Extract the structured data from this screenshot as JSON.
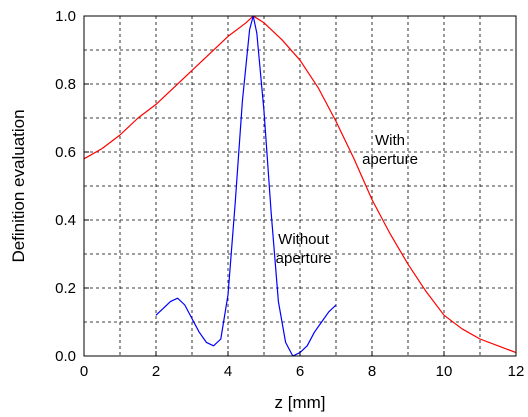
{
  "chart_data": {
    "type": "line",
    "title": "",
    "xlabel": "z [mm]",
    "ylabel": "Definition evaluation",
    "xlim": [
      0,
      12
    ],
    "ylim": [
      0,
      1.0
    ],
    "x_ticks": [
      0,
      2,
      4,
      6,
      8,
      10,
      12
    ],
    "x_tick_labels": [
      "0",
      "2",
      "4",
      "6",
      "8",
      "10",
      "12"
    ],
    "y_ticks": [
      0,
      0.2,
      0.4,
      0.6,
      0.8,
      1.0
    ],
    "y_tick_labels": [
      "0.0",
      "0.2",
      "0.4",
      "0.6",
      "0.8",
      "1.0"
    ],
    "grid": true,
    "grid_style": "dashed",
    "series": [
      {
        "color": "#ff0000",
        "x": [
          0.0,
          0.5,
          1.0,
          1.5,
          2.0,
          2.5,
          3.0,
          3.5,
          4.0,
          4.5,
          4.7,
          5.0,
          5.5,
          6.0,
          6.5,
          7.0,
          7.5,
          8.0,
          8.5,
          9.0,
          9.5,
          10.0,
          10.5,
          11.0,
          11.5,
          12.0
        ],
        "y": [
          0.58,
          0.61,
          0.65,
          0.7,
          0.74,
          0.79,
          0.84,
          0.89,
          0.94,
          0.98,
          1.0,
          0.98,
          0.93,
          0.87,
          0.79,
          0.69,
          0.58,
          0.46,
          0.36,
          0.27,
          0.19,
          0.12,
          0.08,
          0.05,
          0.03,
          0.01
        ]
      },
      {
        "color": "#0000ff",
        "x": [
          2.0,
          2.2,
          2.4,
          2.6,
          2.8,
          3.0,
          3.2,
          3.4,
          3.6,
          3.8,
          4.0,
          4.2,
          4.4,
          4.6,
          4.7,
          4.8,
          5.0,
          5.2,
          5.4,
          5.6,
          5.8,
          6.0,
          6.2,
          6.4,
          6.6,
          6.8,
          7.0
        ],
        "y": [
          0.12,
          0.14,
          0.16,
          0.17,
          0.15,
          0.11,
          0.07,
          0.04,
          0.03,
          0.05,
          0.18,
          0.45,
          0.75,
          0.96,
          1.0,
          0.95,
          0.72,
          0.42,
          0.16,
          0.04,
          0.0,
          0.01,
          0.03,
          0.07,
          0.1,
          0.13,
          0.15
        ]
      }
    ],
    "annotations": [
      {
        "lines": [
          "With",
          "aperture"
        ],
        "x": 8.5,
        "y": 0.62
      },
      {
        "lines": [
          "Without",
          "aperture"
        ],
        "x": 6.1,
        "y": 0.33
      }
    ]
  }
}
